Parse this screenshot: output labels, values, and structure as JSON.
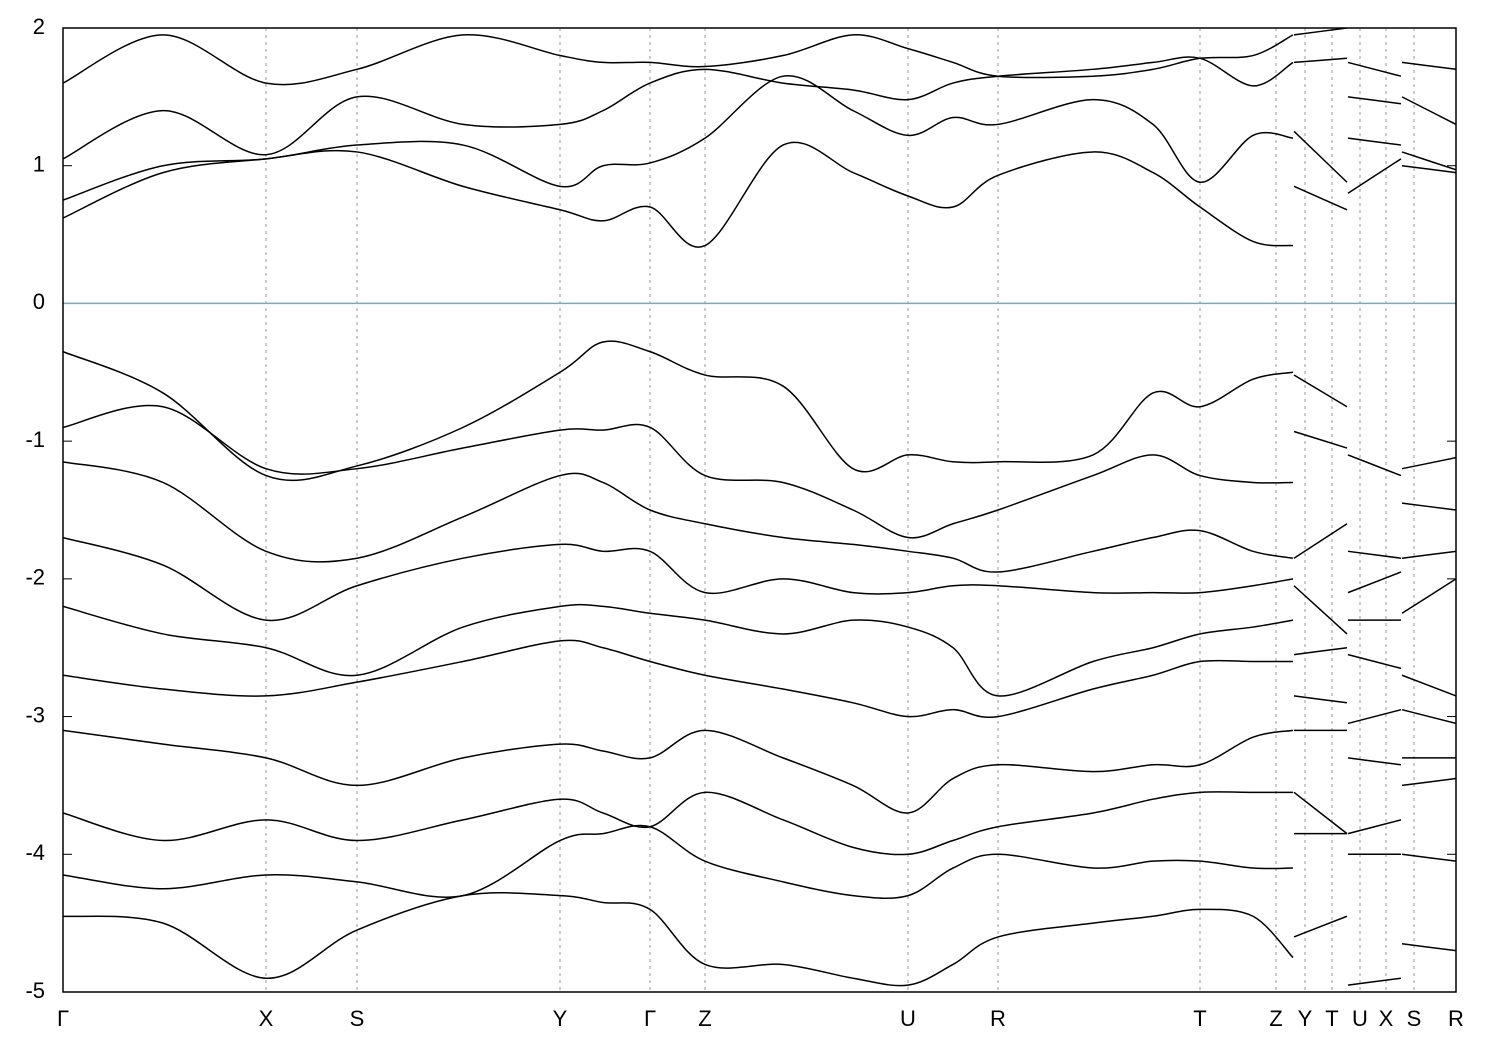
{
  "chart_data": {
    "type": "line",
    "color": "#000000",
    "grid": true,
    "reference_line": {
      "value": 0,
      "color": "#5fb4c8"
    },
    "xlim": [
      0,
      1393
    ],
    "ylim": [
      -5,
      2
    ],
    "yticks": [
      -5,
      -4,
      -3,
      -2,
      -1,
      0,
      1,
      2
    ],
    "xticks": [
      {
        "value": 0,
        "label": "Γ"
      },
      {
        "value": 203,
        "label": "X"
      },
      {
        "value": 294,
        "label": "S"
      },
      {
        "value": 497,
        "label": "Y"
      },
      {
        "value": 587,
        "label": "Γ"
      },
      {
        "value": 642,
        "label": "Z"
      },
      {
        "value": 845,
        "label": "U"
      },
      {
        "value": 935,
        "label": "R"
      },
      {
        "value": 1137,
        "label": "T"
      },
      {
        "value": 1213,
        "label": "Z"
      },
      {
        "value": 1242,
        "label": "Y"
      },
      {
        "value": 1269,
        "label": "T"
      },
      {
        "value": 1297,
        "label": "U"
      },
      {
        "value": 1323,
        "label": "X"
      },
      {
        "value": 1351,
        "label": "S"
      },
      {
        "value": 1393,
        "label": "R"
      }
    ],
    "x": [
      0,
      100,
      203,
      294,
      400,
      497,
      540,
      587,
      642,
      720,
      790,
      845,
      890,
      935,
      1030,
      1090,
      1137,
      1190,
      1230,
      1230,
      1231,
      1284,
      1284,
      1285,
      1338,
      1338,
      1339,
      1393
    ],
    "series": [
      {
        "values": [
          0.62,
          0.95,
          1.05,
          1.1,
          0.85,
          0.68,
          0.6,
          0.7,
          0.42,
          1.15,
          0.95,
          0.78,
          0.7,
          0.93,
          1.1,
          0.95,
          0.7,
          0.45,
          0.42,
          null,
          0.85,
          0.68,
          null,
          0.8,
          1.05,
          null,
          1.0,
          0.95
        ]
      },
      {
        "values": [
          0.75,
          1.0,
          1.05,
          1.15,
          1.15,
          0.85,
          1.0,
          1.02,
          1.2,
          1.65,
          1.4,
          1.22,
          1.35,
          1.3,
          1.48,
          1.3,
          0.88,
          1.22,
          1.2,
          null,
          1.25,
          0.88,
          null,
          1.2,
          1.15,
          null,
          1.1,
          0.97
        ]
      },
      {
        "values": [
          1.05,
          1.4,
          1.08,
          1.5,
          1.3,
          1.3,
          1.4,
          1.6,
          1.7,
          1.6,
          1.55,
          1.48,
          1.6,
          1.65,
          1.7,
          1.75,
          1.78,
          1.58,
          1.75,
          null,
          1.75,
          1.78,
          null,
          1.5,
          1.45,
          null,
          1.5,
          1.3
        ]
      },
      {
        "values": [
          1.6,
          1.95,
          1.6,
          1.7,
          1.95,
          1.8,
          1.75,
          1.75,
          1.72,
          1.8,
          1.95,
          1.85,
          1.75,
          1.65,
          1.65,
          1.7,
          1.78,
          1.8,
          1.95,
          null,
          1.95,
          2.0,
          null,
          1.75,
          1.65,
          null,
          1.75,
          1.7
        ]
      },
      {
        "values": [
          -0.35,
          -0.65,
          -1.25,
          -1.18,
          -0.9,
          -0.5,
          -0.28,
          -0.35,
          -0.52,
          -0.6,
          -1.2,
          -1.1,
          -1.15,
          -1.15,
          -1.1,
          -0.65,
          -0.75,
          -0.55,
          -0.5,
          null,
          -0.52,
          -0.75,
          null,
          -1.1,
          -1.25,
          null,
          -1.2,
          -1.12
        ]
      },
      {
        "values": [
          -0.9,
          -0.75,
          -1.2,
          -1.2,
          -1.05,
          -0.92,
          -0.92,
          -0.9,
          -1.25,
          -1.3,
          -1.5,
          -1.7,
          -1.6,
          -1.5,
          -1.25,
          -1.1,
          -1.25,
          -1.3,
          -1.3,
          null,
          -0.93,
          -1.05,
          null,
          -1.8,
          -1.85,
          null,
          -1.45,
          -1.5
        ]
      },
      {
        "values": [
          -1.15,
          -1.3,
          -1.8,
          -1.85,
          -1.55,
          -1.25,
          -1.3,
          -1.5,
          -1.6,
          -1.7,
          -1.75,
          -1.8,
          -1.85,
          -1.95,
          -1.8,
          -1.7,
          -1.65,
          -1.8,
          -1.85,
          null,
          -1.85,
          -1.6,
          null,
          -2.1,
          -1.95,
          null,
          -1.85,
          -1.8
        ]
      },
      {
        "values": [
          -1.7,
          -1.9,
          -2.3,
          -2.05,
          -1.85,
          -1.75,
          -1.8,
          -1.8,
          -2.1,
          -2.0,
          -2.1,
          -2.1,
          -2.05,
          -2.05,
          -2.1,
          -2.1,
          -2.1,
          -2.05,
          -2.0,
          null,
          -2.05,
          -2.4,
          null,
          -2.3,
          -2.3,
          null,
          -2.25,
          -2.0
        ]
      },
      {
        "values": [
          -2.2,
          -2.4,
          -2.5,
          -2.7,
          -2.35,
          -2.2,
          -2.2,
          -2.25,
          -2.3,
          -2.4,
          -2.3,
          -2.35,
          -2.5,
          -2.85,
          -2.6,
          -2.5,
          -2.4,
          -2.35,
          -2.3,
          null,
          -2.55,
          -2.5,
          null,
          -2.55,
          -2.65,
          null,
          -2.7,
          -2.85
        ]
      },
      {
        "values": [
          -2.7,
          -2.8,
          -2.85,
          -2.75,
          -2.6,
          -2.45,
          -2.5,
          -2.6,
          -2.7,
          -2.8,
          -2.9,
          -3.0,
          -2.95,
          -3.0,
          -2.8,
          -2.7,
          -2.6,
          -2.6,
          -2.6,
          null,
          -2.85,
          -2.9,
          null,
          -3.05,
          -2.95,
          null,
          -2.95,
          -3.05
        ]
      },
      {
        "values": [
          -3.1,
          -3.2,
          -3.3,
          -3.5,
          -3.3,
          -3.2,
          -3.25,
          -3.3,
          -3.1,
          -3.3,
          -3.5,
          -3.7,
          -3.45,
          -3.35,
          -3.4,
          -3.35,
          -3.35,
          -3.15,
          -3.1,
          null,
          -3.1,
          -3.1,
          null,
          -3.3,
          -3.35,
          null,
          -3.3,
          -3.3
        ]
      },
      {
        "values": [
          -3.7,
          -3.9,
          -3.75,
          -3.9,
          -3.75,
          -3.6,
          -3.7,
          -3.8,
          -3.55,
          -3.75,
          -3.95,
          -4.0,
          -3.9,
          -3.8,
          -3.7,
          -3.6,
          -3.55,
          -3.55,
          -3.55,
          null,
          -3.55,
          -3.85,
          null,
          -3.85,
          -3.75,
          null,
          -3.5,
          -3.45
        ]
      },
      {
        "values": [
          -4.15,
          -4.25,
          -4.15,
          -4.2,
          -4.3,
          -3.9,
          -3.85,
          -3.8,
          -4.05,
          -4.2,
          -4.3,
          -4.3,
          -4.1,
          -4.0,
          -4.1,
          -4.05,
          -4.05,
          -4.1,
          -4.1,
          null,
          -3.85,
          -3.85,
          null,
          -4.0,
          -4.0,
          null,
          -4.0,
          -4.05
        ]
      },
      {
        "values": [
          -4.45,
          -4.5,
          -4.9,
          -4.55,
          -4.3,
          -4.3,
          -4.35,
          -4.4,
          -4.8,
          -4.8,
          -4.9,
          -4.95,
          -4.8,
          -4.6,
          -4.5,
          -4.45,
          -4.4,
          -4.45,
          -4.75,
          null,
          -4.6,
          -4.45,
          null,
          -4.95,
          -4.9,
          null,
          -4.65,
          -4.7
        ]
      }
    ]
  }
}
